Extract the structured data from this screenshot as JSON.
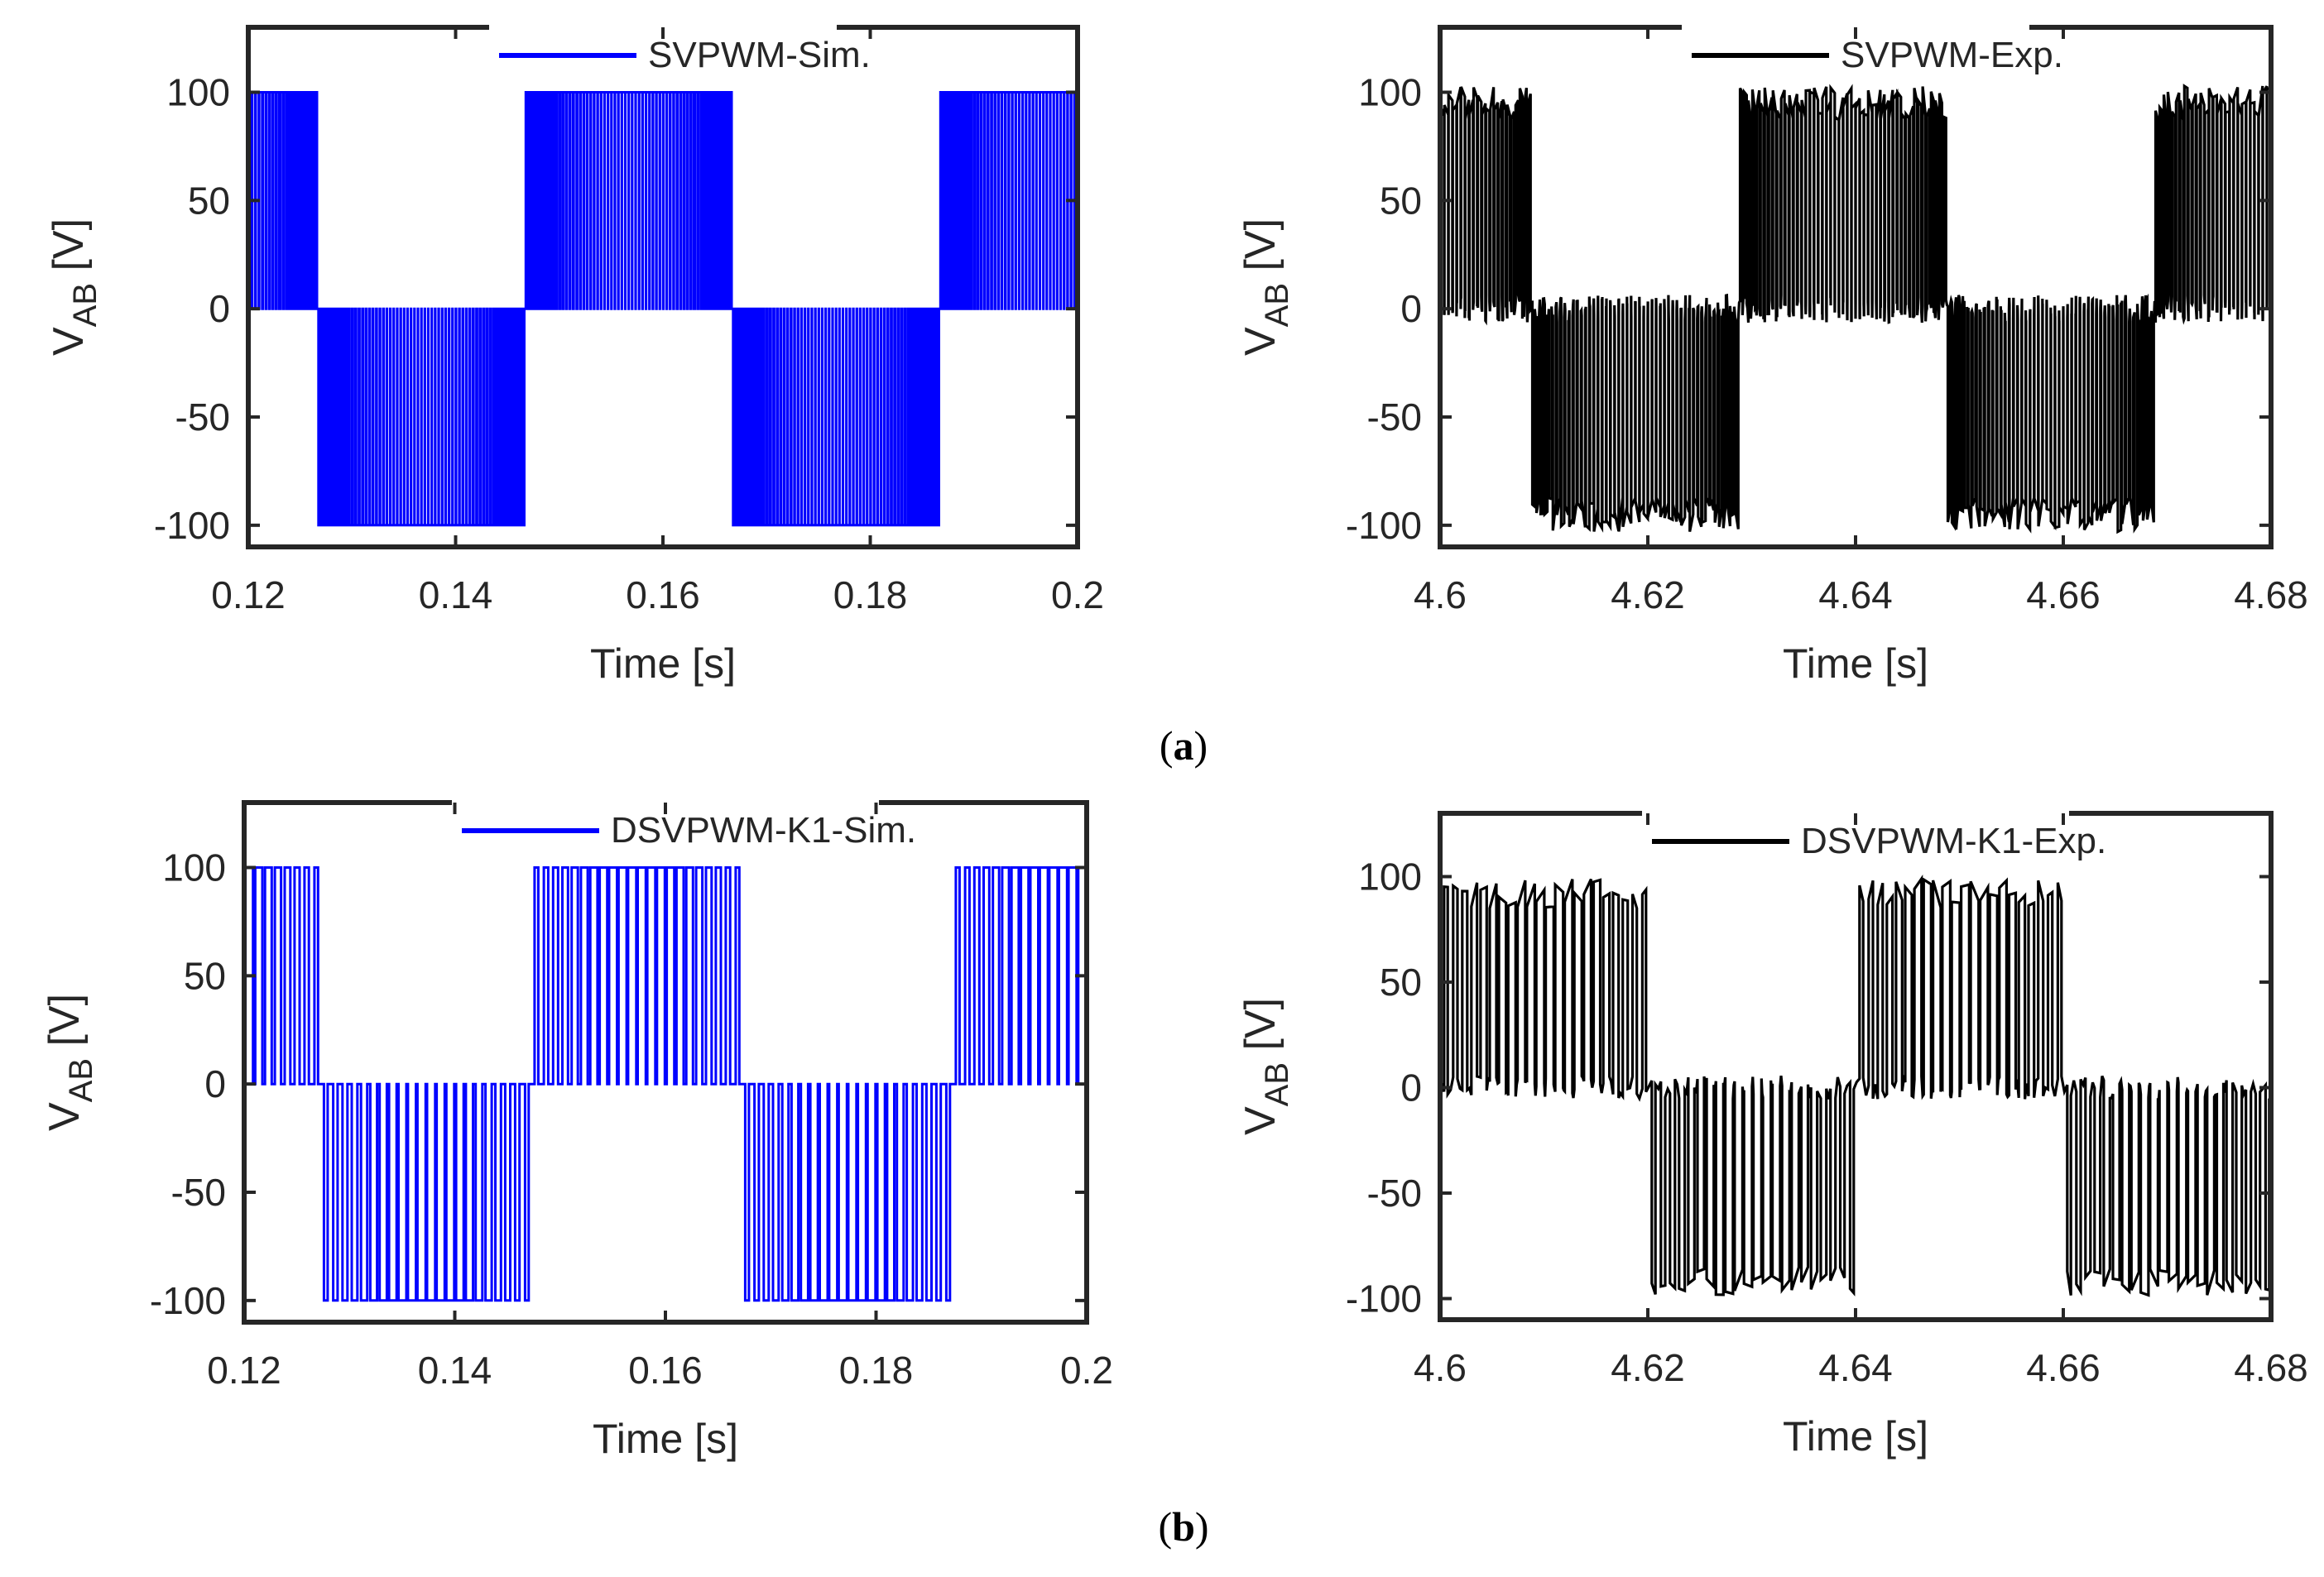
{
  "figure": {
    "label_a_open": "(",
    "label_a_letter": "a",
    "label_a_close": ")",
    "label_b_open": "(",
    "label_b_letter": "b",
    "label_b_close": ")"
  },
  "colors": {
    "sim": "#0000ff",
    "exp": "#000000",
    "axis": "#262626",
    "text": "#262626"
  },
  "chart_data": [
    {
      "id": "a-sim",
      "type": "line",
      "legend": "SVPWM-Sim.",
      "series_color": "#0000ff",
      "xlabel": "Time [s]",
      "ylabel_main": "V",
      "ylabel_sub": "AB",
      "ylabel_unit": " [V]",
      "xlim": [
        0.12,
        0.2
      ],
      "ylim": [
        -110,
        130
      ],
      "xticks": [
        0.12,
        0.14,
        0.16,
        0.18,
        0.2
      ],
      "xtick_labels": [
        "0.12",
        "0.14",
        "0.16",
        "0.18",
        "0.2"
      ],
      "yticks": [
        -100,
        -50,
        0,
        50,
        100
      ],
      "ytick_labels": [
        "-100",
        "-50",
        "0",
        "50",
        "100"
      ],
      "amplitude": 100,
      "period": 0.04,
      "phase_start": 0.1067,
      "pulses_per_half_cycle": 60,
      "discontinuous": false,
      "noise": 0
    },
    {
      "id": "a-exp",
      "type": "line",
      "legend": "SVPWM-Exp.",
      "series_color": "#000000",
      "xlabel": "Time [s]",
      "ylabel_main": "V",
      "ylabel_sub": "AB",
      "ylabel_unit": " [V]",
      "xlim": [
        4.6,
        4.68
      ],
      "ylim": [
        -110,
        130
      ],
      "xticks": [
        4.6,
        4.62,
        4.64,
        4.66,
        4.68
      ],
      "xtick_labels": [
        "4.6",
        "4.62",
        "4.64",
        "4.66",
        "4.68"
      ],
      "yticks": [
        -100,
        -50,
        0,
        50,
        100
      ],
      "ytick_labels": [
        "-100",
        "-50",
        "0",
        "50",
        "100"
      ],
      "amplitude": 95,
      "period": 0.04,
      "phase_start": 4.5888,
      "pulses_per_half_cycle": 50,
      "discontinuous": false,
      "noise": 8
    },
    {
      "id": "b-sim",
      "type": "line",
      "legend": "DSVPWM-K1-Sim.",
      "series_color": "#0000ff",
      "xlabel": "Time [s]",
      "ylabel_main": "V",
      "ylabel_sub": "AB",
      "ylabel_unit": " [V]",
      "xlim": [
        0.12,
        0.2
      ],
      "ylim": [
        -110,
        130
      ],
      "xticks": [
        0.12,
        0.14,
        0.16,
        0.18,
        0.2
      ],
      "xtick_labels": [
        "0.12",
        "0.14",
        "0.16",
        "0.18",
        "0.2"
      ],
      "yticks": [
        -100,
        -50,
        0,
        50,
        100
      ],
      "ytick_labels": [
        "-100",
        "-50",
        "0",
        "50",
        "100"
      ],
      "amplitude": 100,
      "period": 0.04,
      "phase_start": 0.1073,
      "pulses_per_half_cycle": 22,
      "discontinuous": true,
      "noise": 0
    },
    {
      "id": "b-exp",
      "type": "line",
      "legend": "DSVPWM-K1-Exp.",
      "series_color": "#000000",
      "xlabel": "Time [s]",
      "ylabel_main": "V",
      "ylabel_sub": "AB",
      "ylabel_unit": " [V]",
      "xlim": [
        4.6,
        4.68
      ],
      "ylim": [
        -110,
        130
      ],
      "xticks": [
        4.6,
        4.62,
        4.64,
        4.66,
        4.68
      ],
      "xtick_labels": [
        "4.6",
        "4.62",
        "4.64",
        "4.66",
        "4.68"
      ],
      "yticks": [
        -100,
        -50,
        0,
        50,
        100
      ],
      "ytick_labels": [
        "-100",
        "-50",
        "0",
        "50",
        "100"
      ],
      "amplitude": 92,
      "period": 0.04,
      "phase_start": 4.6001,
      "pulses_per_half_cycle": 22,
      "discontinuous": true,
      "noise": 7
    }
  ]
}
